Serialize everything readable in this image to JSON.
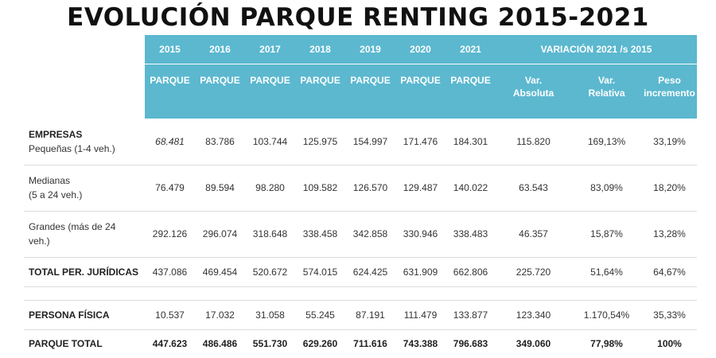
{
  "title": "EVOLUCIÓN PARQUE RENTING 2015-2021",
  "header": {
    "years": [
      "2015",
      "2016",
      "2017",
      "2018",
      "2019",
      "2020",
      "2021"
    ],
    "variation": "VARIACIÓN 2021 /s 2015",
    "parque": "PARQUE",
    "var_abs": [
      "Var.",
      "Absoluta"
    ],
    "var_rel": [
      "Var.",
      "Relativa"
    ],
    "peso": [
      "Peso",
      "incremento"
    ]
  },
  "rows": {
    "pequenas": {
      "label": "EMPRESAS",
      "sub": "Pequeñas (1-4 veh.)",
      "values": [
        "68.481",
        "83.786",
        "103.744",
        "125.975",
        "154.997",
        "171.476",
        "184.301"
      ],
      "var_abs": "115.820",
      "var_rel": "169,13%",
      "peso": "33,19%"
    },
    "medianas": {
      "label": [
        "Medianas",
        "(5 a 24 veh.)"
      ],
      "values": [
        "76.479",
        "89.594",
        "98.280",
        "109.582",
        "126.570",
        "129.487",
        "140.022"
      ],
      "var_abs": "63.543",
      "var_rel": "83,09%",
      "peso": "18,20%"
    },
    "grandes": {
      "label": [
        "Grandes (más de 24",
        "veh.)"
      ],
      "values": [
        "292.126",
        "296.074",
        "318.648",
        "338.458",
        "342.858",
        "330.946",
        "338.483"
      ],
      "var_abs": "46.357",
      "var_rel": "15,87%",
      "peso": "13,28%"
    },
    "juridicas": {
      "label": "TOTAL PER. JURÍDICAS",
      "values": [
        "437.086",
        "469.454",
        "520.672",
        "574.015",
        "624.425",
        "631.909",
        "662.806"
      ],
      "var_abs": "225.720",
      "var_rel": "51,64%",
      "peso": "64,67%"
    },
    "fisica": {
      "label": "PERSONA FÍSICA",
      "values": [
        "10.537",
        "17.032",
        "31.058",
        "55.245",
        "87.191",
        "111.479",
        "133.877"
      ],
      "var_abs": "123.340",
      "var_rel": "1.170,54%",
      "peso": "35,33%"
    },
    "total": {
      "label": "PARQUE TOTAL",
      "values": [
        "447.623",
        "486.486",
        "551.730",
        "629.260",
        "711.616",
        "743.388",
        "796.683"
      ],
      "var_abs": "349.060",
      "var_rel": "77,98%",
      "peso": "100%"
    }
  }
}
